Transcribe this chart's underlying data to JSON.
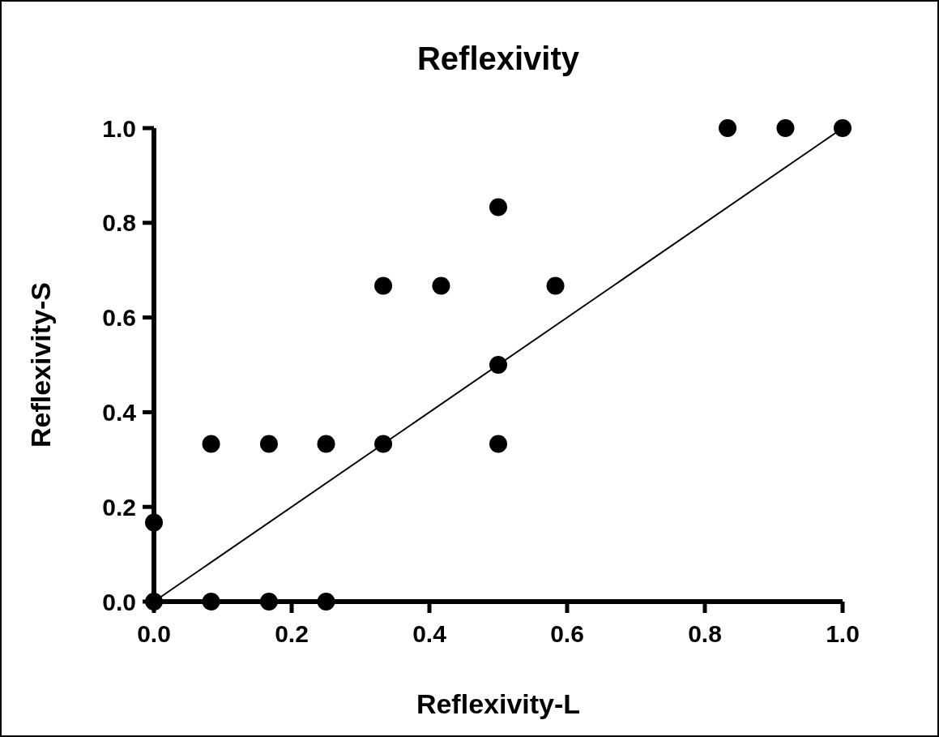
{
  "chart_data": {
    "type": "scatter",
    "title": "Reflexivity",
    "xlabel": "Reflexivity-L",
    "ylabel": "Reflexivity-S",
    "xlim": [
      0,
      1
    ],
    "ylim": [
      0,
      1
    ],
    "xticks": [
      {
        "value": 0,
        "label": "0.0"
      },
      0.2,
      0.4,
      0.6,
      0.8,
      {
        "value": 1,
        "label": "1.0"
      }
    ],
    "yticks": [
      {
        "value": 0,
        "label": "0.0"
      },
      0.2,
      0.4,
      0.6,
      0.8,
      {
        "value": 1,
        "label": "1.0"
      }
    ],
    "grid": false,
    "series": [
      {
        "color": "#000000",
        "marker": "circle",
        "x": [
          0,
          0,
          0.083,
          0.167,
          0.25,
          0.083,
          0.167,
          0.25,
          0.333,
          0.333,
          0.417,
          0.5,
          0.5,
          0.5,
          0.583,
          0.833,
          0.917,
          1
        ],
        "values": [
          0,
          0.167,
          0,
          0,
          0,
          0.333,
          0.333,
          0.333,
          0.333,
          0.667,
          0.667,
          0.833,
          0.5,
          0.333,
          0.667,
          1,
          1,
          1
        ]
      },
      {
        "type": "line",
        "color": "#000000",
        "line_style": "solid",
        "marker": "none",
        "x": [
          0,
          1
        ],
        "values": [
          0,
          1
        ]
      }
    ]
  }
}
